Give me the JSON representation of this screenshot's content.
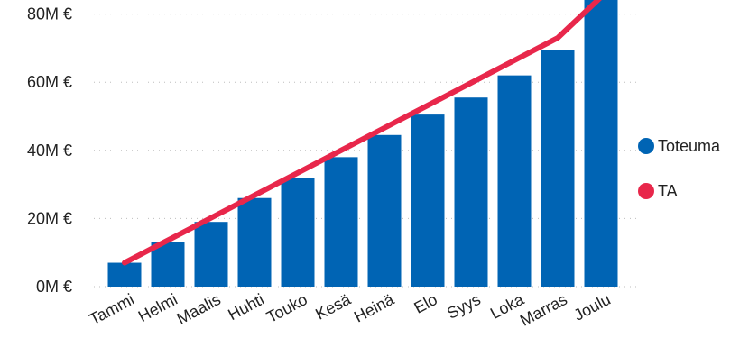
{
  "chart_data": {
    "type": "bar",
    "categories": [
      "Tammi",
      "Helmi",
      "Maalis",
      "Huhti",
      "Touko",
      "Kesä",
      "Heinä",
      "Elo",
      "Syys",
      "Loka",
      "Marras",
      "Joulu"
    ],
    "series": [
      {
        "name": "Toteuma",
        "type": "bar",
        "color": "#0064B4",
        "values": [
          7,
          13,
          19,
          26,
          32,
          38,
          44.5,
          50.5,
          55.5,
          62,
          69.5,
          85
        ]
      },
      {
        "name": "TA",
        "type": "line",
        "color": "#E8274B",
        "values": [
          7,
          13.6,
          20.2,
          26.8,
          33.4,
          40,
          46.6,
          53.2,
          59.8,
          66.4,
          73,
          85
        ]
      }
    ],
    "y_ticks": [
      {
        "value": 0,
        "label": "0M €"
      },
      {
        "value": 20,
        "label": "20M €"
      },
      {
        "value": 40,
        "label": "40M €"
      },
      {
        "value": 60,
        "label": "60M €"
      },
      {
        "value": 80,
        "label": "80M €"
      }
    ],
    "ylim": [
      0,
      85
    ],
    "grid": true,
    "legend_position": "right"
  }
}
